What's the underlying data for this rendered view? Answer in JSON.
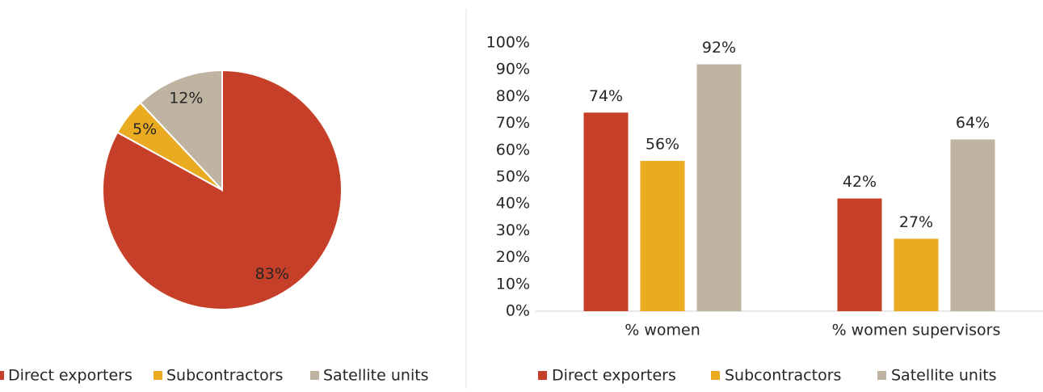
{
  "chart_data": [
    {
      "type": "pie",
      "categories": [
        "Direct exporters",
        "Subcontractors",
        "Satellite units"
      ],
      "values": [
        83,
        5,
        12
      ],
      "value_labels": [
        "83%",
        "5%",
        "12%"
      ],
      "colors": [
        "#c63f28",
        "#e9ab22",
        "#bfb3a1"
      ]
    },
    {
      "type": "bar",
      "categories": [
        "% women",
        "% women supervisors"
      ],
      "series": [
        {
          "name": "Direct exporters",
          "color": "#c63f28",
          "values": [
            74,
            42
          ],
          "value_labels": [
            "74%",
            "42%"
          ]
        },
        {
          "name": "Subcontractors",
          "color": "#e9ab22",
          "values": [
            56,
            27
          ],
          "value_labels": [
            "56%",
            "27%"
          ]
        },
        {
          "name": "Satellite units",
          "color": "#bfb3a1",
          "values": [
            92,
            64
          ],
          "value_labels": [
            "92%",
            "64%"
          ]
        }
      ],
      "ylim": [
        0,
        100
      ],
      "yticks": [
        {
          "value": 0,
          "label": "0%"
        },
        {
          "value": 10,
          "label": "10%"
        },
        {
          "value": 20,
          "label": "20%"
        },
        {
          "value": 30,
          "label": "30%"
        },
        {
          "value": 40,
          "label": "40%"
        },
        {
          "value": 50,
          "label": "50%"
        },
        {
          "value": 60,
          "label": "60%"
        },
        {
          "value": 70,
          "label": "70%"
        },
        {
          "value": 80,
          "label": "80%"
        },
        {
          "value": 90,
          "label": "90%"
        },
        {
          "value": 100,
          "label": "100%"
        }
      ]
    }
  ]
}
